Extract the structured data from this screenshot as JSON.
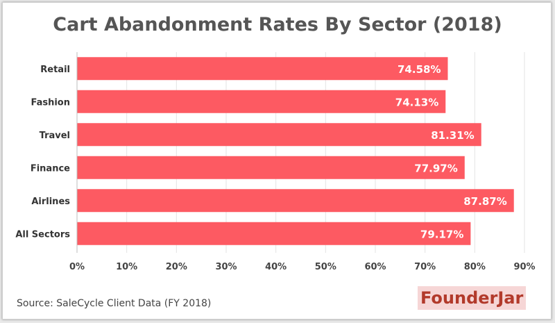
{
  "title": "Cart Abandonment Rates By Sector (2018)",
  "source": "Source: SaleCycle Client Data (FY 2018)",
  "brand": "FounderJar",
  "colors": {
    "bar": "#fd5a62",
    "title": "#555555",
    "brand_text": "#b23a2b",
    "brand_bg": "#f6d6d6"
  },
  "chart_data": {
    "type": "bar",
    "orientation": "horizontal",
    "categories": [
      "Retail",
      "Fashion",
      "Travel",
      "Finance",
      "Airlines",
      "All Sectors"
    ],
    "values": [
      74.58,
      74.13,
      81.31,
      77.97,
      87.87,
      79.17
    ],
    "data_labels": [
      "74.58%",
      "74.13%",
      "81.31%",
      "77.97%",
      "87.87%",
      "79.17%"
    ],
    "xlim": [
      0,
      90
    ],
    "xticks": [
      "0%",
      "10%",
      "20%",
      "30%",
      "40%",
      "50%",
      "60%",
      "70%",
      "80%",
      "90%"
    ],
    "grid": true,
    "title": "Cart Abandonment Rates By Sector (2018)",
    "xlabel": "",
    "ylabel": ""
  }
}
